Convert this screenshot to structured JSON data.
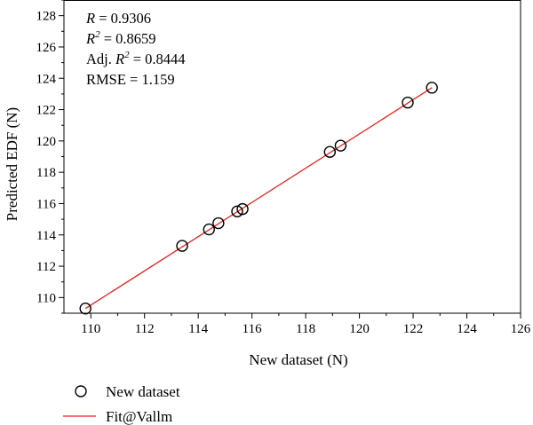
{
  "chart_data": {
    "type": "scatter",
    "xlabel": "New dataset (N)",
    "ylabel": "Predicted EDF (N)",
    "xlim": [
      109,
      126
    ],
    "ylim": [
      109,
      129
    ],
    "x_ticks": [
      110,
      112,
      114,
      116,
      118,
      120,
      122,
      124,
      126
    ],
    "y_ticks": [
      110,
      112,
      114,
      116,
      118,
      120,
      122,
      124,
      126,
      128
    ],
    "x_tick_labels": [
      "110",
      "112",
      "114",
      "116",
      "118",
      "120",
      "122",
      "124",
      "126"
    ],
    "y_tick_labels": [
      "110",
      "112",
      "114",
      "116",
      "118",
      "120",
      "122",
      "124",
      "126",
      "128"
    ],
    "grid": false,
    "legend_position": "below",
    "series": [
      {
        "name": "New dataset",
        "kind": "scatter",
        "marker": "open-circle",
        "color": "#000000",
        "points": [
          {
            "x": 109.8,
            "y": 109.3
          },
          {
            "x": 113.4,
            "y": 113.3
          },
          {
            "x": 114.4,
            "y": 114.35
          },
          {
            "x": 114.75,
            "y": 114.75
          },
          {
            "x": 115.45,
            "y": 115.5
          },
          {
            "x": 115.65,
            "y": 115.65
          },
          {
            "x": 118.9,
            "y": 119.3
          },
          {
            "x": 119.3,
            "y": 119.7
          },
          {
            "x": 121.8,
            "y": 122.45
          },
          {
            "x": 122.7,
            "y": 123.4
          }
        ]
      },
      {
        "name": "Fit@Vallm",
        "kind": "line",
        "color": "#e8221b",
        "points": [
          {
            "x": 109.8,
            "y": 109.3
          },
          {
            "x": 122.7,
            "y": 123.4
          }
        ]
      }
    ],
    "annotations": [
      {
        "italic": "R",
        "sup": "",
        "rest": " = 0.9306"
      },
      {
        "italic": "R",
        "sup": "2",
        "rest": " = 0.8659"
      },
      {
        "prefix": "Adj. ",
        "italic": "R",
        "sup": "2",
        "rest": " = 0.8444"
      },
      {
        "plain": "RMSE = 1.159"
      }
    ]
  }
}
